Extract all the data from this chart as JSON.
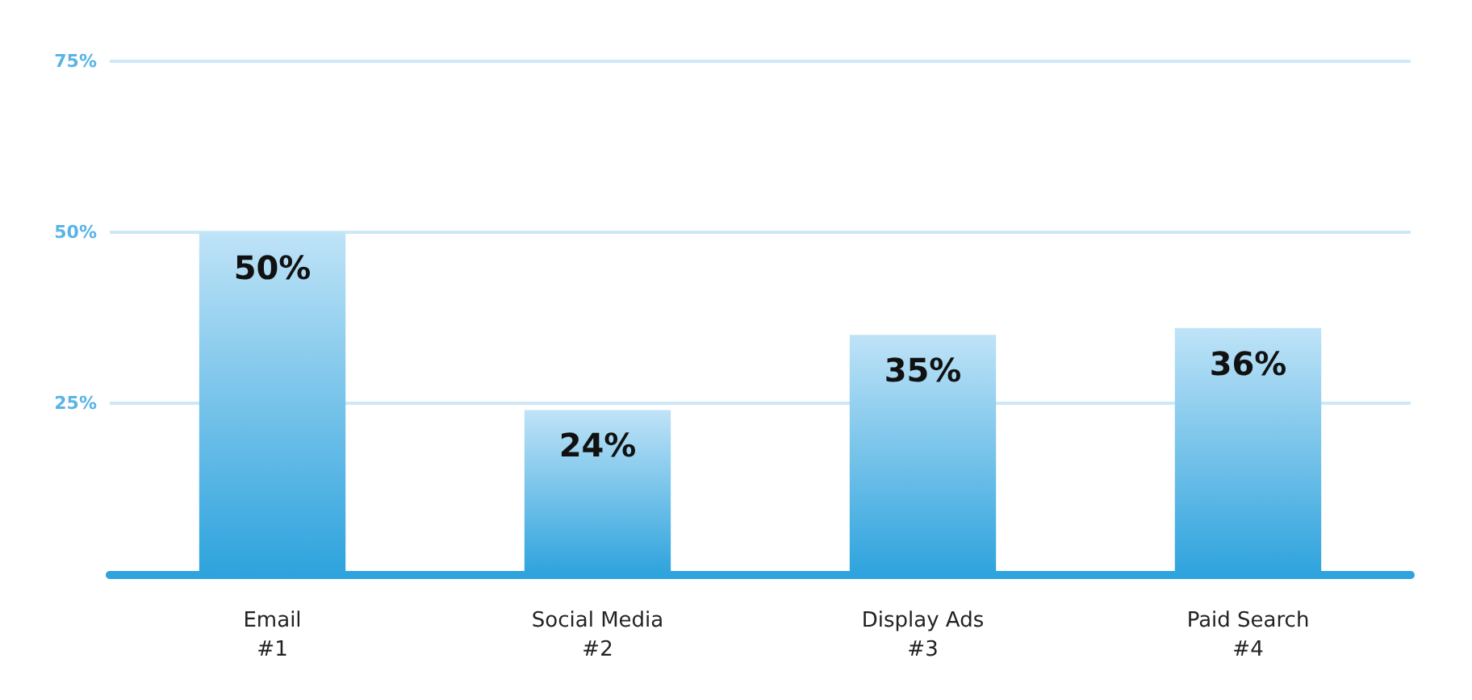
{
  "chart_data": {
    "type": "bar",
    "categories": [
      "Email\n#1",
      "Social Media\n#2",
      "Display Ads\n#3",
      "Paid Search\n#4"
    ],
    "values": [
      50,
      24,
      35,
      36
    ],
    "value_labels": [
      "50%",
      "24%",
      "35%",
      "36%"
    ],
    "color": "#2ea3dd",
    "ylim": [
      0,
      75
    ],
    "yticks": [
      {
        "value": 0,
        "label": null
      },
      {
        "value": 25,
        "label": "25%"
      },
      {
        "value": 50,
        "label": "50%"
      },
      {
        "value": 75,
        "label": "75%"
      }
    ],
    "grid": "y"
  }
}
